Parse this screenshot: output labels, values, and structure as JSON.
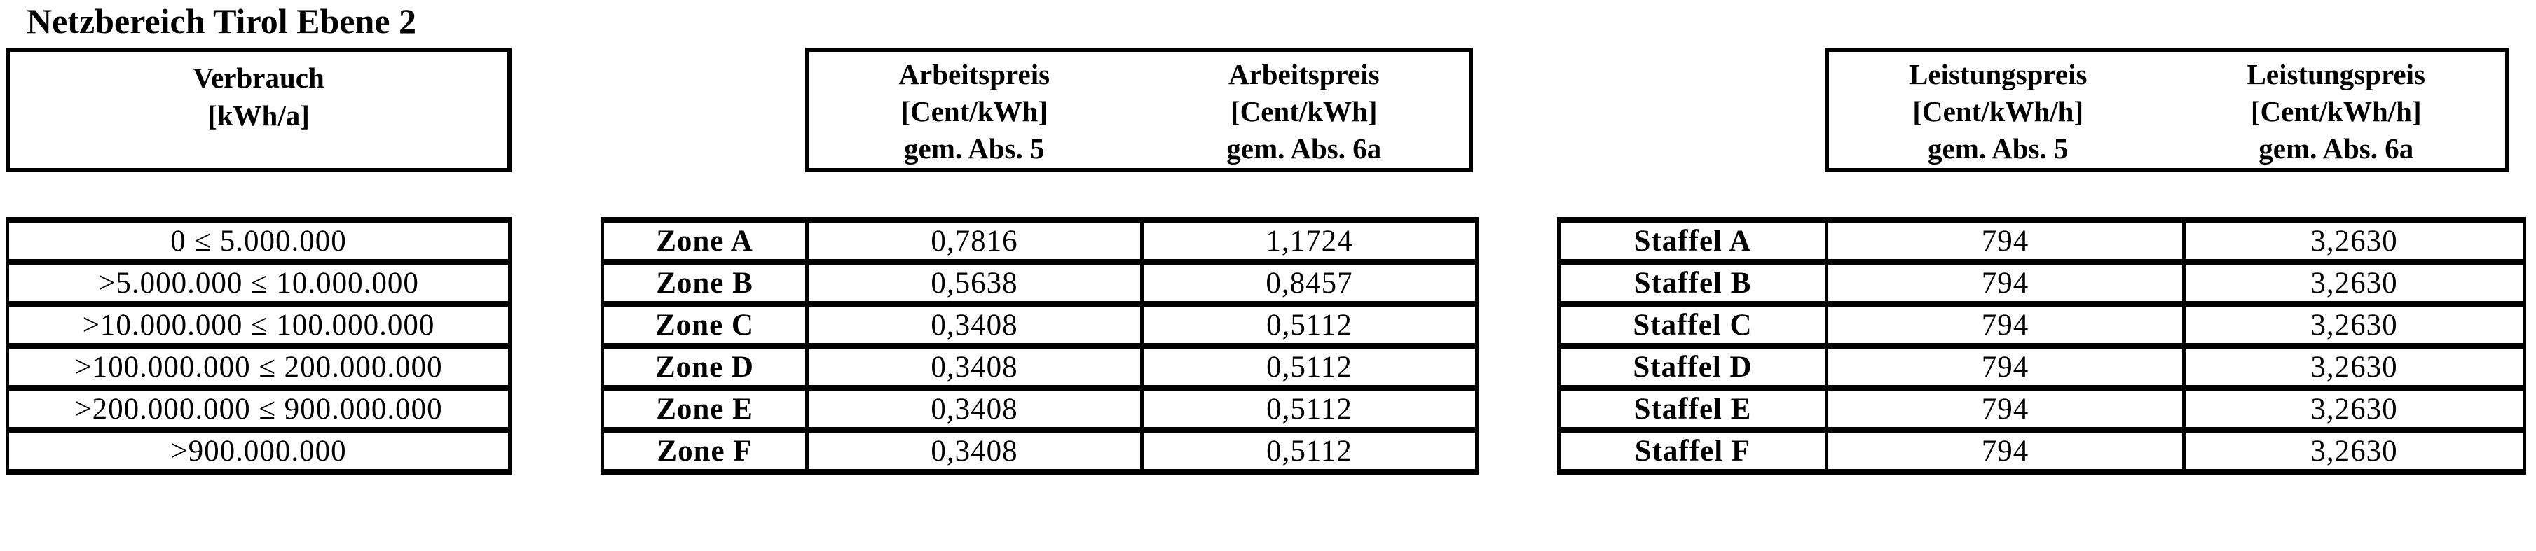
{
  "title": "Netzbereich Tirol Ebene 2",
  "colors": {
    "text": "#000000",
    "border": "#000000",
    "background": "#ffffff"
  },
  "verbrauch_table": {
    "header": {
      "line1": "Verbrauch",
      "line2": "[kWh/a]"
    },
    "ranges": [
      "0 ≤ 5.000.000",
      ">5.000.000 ≤ 10.000.000",
      ">10.000.000 ≤ 100.000.000",
      ">100.000.000 ≤ 200.000.000",
      ">200.000.000 ≤ 900.000.000",
      ">900.000.000"
    ]
  },
  "arbeitspreis_table": {
    "header_col1": {
      "line1": "Arbeitspreis",
      "line2": "[Cent/kWh]",
      "line3": "gem. Abs. 5"
    },
    "header_col2": {
      "line1": "Arbeitspreis",
      "line2": "[Cent/kWh]",
      "line3": "gem. Abs. 6a"
    },
    "rows": [
      {
        "label": "Zone A",
        "abs5": "0,7816",
        "abs6a": "1,1724"
      },
      {
        "label": "Zone B",
        "abs5": "0,5638",
        "abs6a": "0,8457"
      },
      {
        "label": "Zone C",
        "abs5": "0,3408",
        "abs6a": "0,5112"
      },
      {
        "label": "Zone D",
        "abs5": "0,3408",
        "abs6a": "0,5112"
      },
      {
        "label": "Zone E",
        "abs5": "0,3408",
        "abs6a": "0,5112"
      },
      {
        "label": "Zone F",
        "abs5": "0,3408",
        "abs6a": "0,5112"
      }
    ]
  },
  "leistungspreis_table": {
    "header_col1": {
      "line1": "Leistungspreis",
      "line2": "[Cent/kWh/h]",
      "line3": "gem. Abs. 5"
    },
    "header_col2": {
      "line1": "Leistungspreis",
      "line2": "[Cent/kWh/h]",
      "line3": "gem. Abs. 6a"
    },
    "rows": [
      {
        "label": "Staffel A",
        "abs5": "794",
        "abs6a": "3,2630"
      },
      {
        "label": "Staffel B",
        "abs5": "794",
        "abs6a": "3,2630"
      },
      {
        "label": "Staffel C",
        "abs5": "794",
        "abs6a": "3,2630"
      },
      {
        "label": "Staffel D",
        "abs5": "794",
        "abs6a": "3,2630"
      },
      {
        "label": "Staffel E",
        "abs5": "794",
        "abs6a": "3,2630"
      },
      {
        "label": "Staffel F",
        "abs5": "794",
        "abs6a": "3,2630"
      }
    ]
  }
}
